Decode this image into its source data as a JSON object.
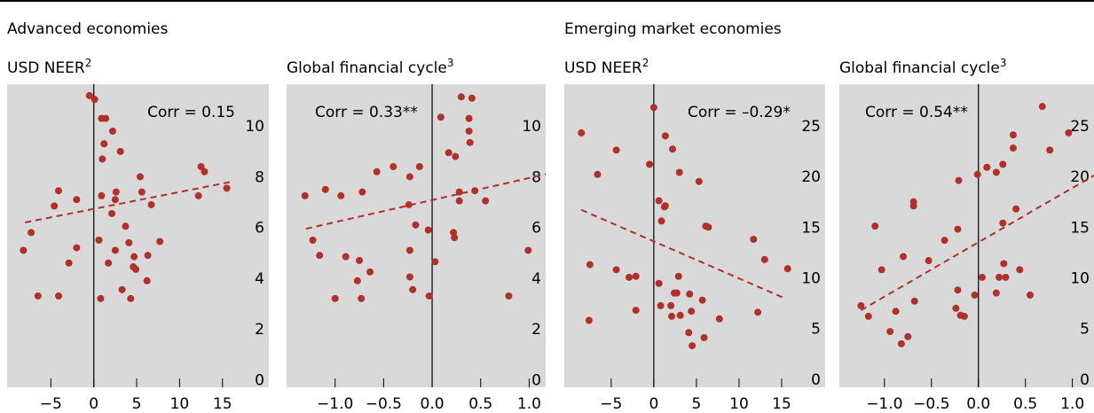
{
  "headers": [
    "Advanced economies",
    "Emerging market economies"
  ],
  "chart_data": [
    {
      "type": "scatter",
      "title": "USD NEER",
      "footnote": "2",
      "annotation": "Corr = 0.15",
      "color": "#b0302a",
      "background": "#d9d9d9",
      "x": [
        -0.5,
        0.1,
        0.9,
        1.4,
        2.2,
        1.2,
        3.1,
        1.0,
        5.4,
        12.5,
        12.9,
        -4.1,
        -4.6,
        -2.0,
        0.9,
        2.6,
        2.5,
        5.6,
        6.7,
        12.2,
        15.5,
        2.1,
        3.7,
        -7.3,
        -2.0,
        0.6,
        2.5,
        4.1,
        7.7,
        -8.2,
        -2.9,
        4.7,
        1.7,
        4.6,
        6.3,
        6.2,
        4.9,
        -6.5,
        -4.1,
        0.8,
        3.3,
        4.3
      ],
      "y": [
        11.2,
        11.05,
        10.3,
        10.3,
        9.8,
        9.3,
        9.0,
        8.7,
        8.0,
        8.4,
        8.2,
        7.45,
        6.85,
        7.1,
        7.25,
        7.4,
        7.1,
        7.4,
        6.9,
        7.25,
        7.55,
        6.55,
        6.05,
        5.8,
        5.2,
        5.5,
        5.1,
        5.4,
        5.45,
        5.1,
        4.6,
        4.85,
        4.6,
        4.45,
        4.9,
        3.9,
        4.35,
        3.3,
        3.3,
        3.2,
        3.55,
        3.2
      ],
      "trend": {
        "x": [
          -8,
          16
        ],
        "y": [
          6.2,
          7.8
        ]
      },
      "xlim": [
        -10.1,
        20.4
      ],
      "ylim": [
        -0.3,
        11.65
      ],
      "xticks": [
        {
          "value": -5,
          "label": "−5"
        },
        0,
        5,
        10,
        15
      ],
      "yticks": [
        0,
        2,
        4,
        6,
        8,
        10
      ]
    },
    {
      "type": "scatter",
      "title": "Global financial cycle",
      "footnote": "3",
      "annotation": "Corr = 0.33**",
      "color": "#b0302a",
      "background": "#d9d9d9",
      "x": [
        0.09,
        0.3,
        0.41,
        0.38,
        0.38,
        0.39,
        0.17,
        0.24,
        -0.13,
        -0.4,
        -0.57,
        -0.23,
        -1.1,
        -1.31,
        -0.94,
        -0.72,
        0.28,
        0.44,
        0.55,
        0.28,
        -0.24,
        -0.17,
        -0.04,
        0.22,
        0.23,
        -1.23,
        -1.16,
        -0.89,
        -0.75,
        -0.64,
        -0.23,
        0.03,
        -0.77,
        -0.23,
        -0.2,
        0.99,
        -1.0,
        -0.73,
        -0.03,
        0.79
      ],
      "y": [
        10.35,
        11.15,
        11.1,
        10.3,
        9.8,
        9.35,
        8.95,
        8.8,
        8.4,
        8.4,
        8.2,
        8.0,
        7.5,
        7.25,
        7.25,
        7.4,
        7.4,
        7.45,
        7.05,
        7.05,
        6.9,
        6.1,
        5.9,
        5.8,
        5.6,
        5.5,
        4.9,
        4.85,
        4.7,
        4.25,
        5.1,
        4.65,
        3.9,
        4.05,
        3.55,
        5.1,
        3.2,
        3.2,
        3.3,
        3.3
      ],
      "trend": {
        "x": [
          -1.3,
          1.17
        ],
        "y": [
          5.95,
          8.1
        ]
      },
      "xlim": [
        -1.5,
        1.17
      ],
      "ylim": [
        -0.3,
        11.65
      ],
      "xticks": [
        {
          "value": -1,
          "label": "−1.0"
        },
        {
          "value": -0.5,
          "label": "−0.5"
        },
        {
          "value": 0,
          "label": "0.0"
        },
        0.5,
        {
          "value": 1,
          "label": "1.0"
        }
      ],
      "yticks": [
        0,
        2,
        4,
        6,
        8,
        10
      ]
    },
    {
      "type": "scatter",
      "title": "USD NEER",
      "footnote": "2",
      "annotation": "Corr = –0.29*",
      "color": "#b0302a",
      "background": "#d9d9d9",
      "x": [
        -8.5,
        0,
        1.35,
        2.2,
        -4.4,
        -0.5,
        3.0,
        5.3,
        -6.6,
        0.6,
        1.35,
        1.25,
        0.9,
        6.1,
        6.4,
        11.7,
        13.0,
        15.7,
        -7.5,
        -4.4,
        -2.9,
        -2.1,
        2.9,
        0.6,
        2.4,
        2.7,
        4.2,
        5.7,
        2.0,
        0.8,
        -2.1,
        4.4,
        3.1,
        2.1,
        7.7,
        12.2,
        -7.6,
        4.1,
        5.9,
        4.5
      ],
      "y": [
        24.3,
        26.8,
        24.0,
        22.7,
        22.6,
        21.2,
        20.4,
        19.5,
        20.2,
        17.6,
        17.1,
        17.0,
        15.6,
        15.1,
        15.0,
        13.8,
        11.8,
        10.9,
        11.3,
        10.8,
        10.05,
        10.15,
        10.15,
        9.45,
        8.5,
        8.5,
        8.4,
        7.8,
        7.25,
        7.25,
        6.8,
        6.7,
        6.3,
        6.2,
        5.95,
        6.6,
        5.8,
        4.6,
        4.1,
        3.3
      ],
      "trend": {
        "x": [
          -8.5,
          15.3
        ],
        "y": [
          16.7,
          8.0
        ]
      },
      "xlim": [
        -10.5,
        20.1
      ],
      "ylim": [
        -0.8,
        29.1
      ],
      "xticks": [
        {
          "value": -5,
          "label": "−5"
        },
        0,
        5,
        10,
        15
      ],
      "yticks": [
        0,
        5,
        10,
        15,
        20,
        25
      ]
    },
    {
      "type": "scatter",
      "title": "Global financial cycle",
      "footnote": "3",
      "annotation": "Corr = 0.54**",
      "color": "#b0302a",
      "background": "#d9d9d9",
      "x": [
        0.68,
        0.96,
        0.37,
        0.37,
        0.76,
        0.26,
        0.09,
        0.19,
        -0.01,
        -0.21,
        -0.69,
        -0.69,
        0.4,
        -1.1,
        0.26,
        -0.22,
        -0.36,
        -0.53,
        -0.8,
        0.27,
        0.44,
        0.22,
        -1.03,
        0.04,
        0.29,
        -0.22,
        0.19,
        0.55,
        -0.04,
        -0.68,
        -1.25,
        -1.17,
        -0.88,
        -0.24,
        -0.19,
        -0.15,
        -0.94,
        -0.75,
        -0.82
      ],
      "y": [
        26.9,
        24.3,
        24.1,
        22.8,
        22.6,
        21.2,
        20.9,
        20.4,
        20.2,
        19.6,
        17.5,
        17.1,
        16.8,
        15.1,
        15.4,
        14.8,
        13.7,
        11.7,
        12.1,
        11.4,
        10.8,
        10.05,
        10.8,
        10.05,
        10.05,
        8.8,
        8.5,
        8.3,
        8.3,
        7.7,
        7.25,
        6.2,
        6.7,
        7.0,
        6.3,
        6.2,
        4.7,
        4.2,
        3.5
      ],
      "trend": {
        "x": [
          -1.25,
          1.23
        ],
        "y": [
          6.8,
          20.1
        ]
      },
      "xlim": [
        -1.48,
        1.23
      ],
      "ylim": [
        -0.8,
        29.1
      ],
      "xticks": [
        {
          "value": -1,
          "label": "−1.0"
        },
        {
          "value": -0.5,
          "label": "−0.5"
        },
        {
          "value": 0,
          "label": "0.0"
        },
        0.5,
        {
          "value": 1,
          "label": "1.0"
        }
      ],
      "yticks": [
        0,
        5,
        10,
        15,
        20,
        25
      ]
    }
  ]
}
